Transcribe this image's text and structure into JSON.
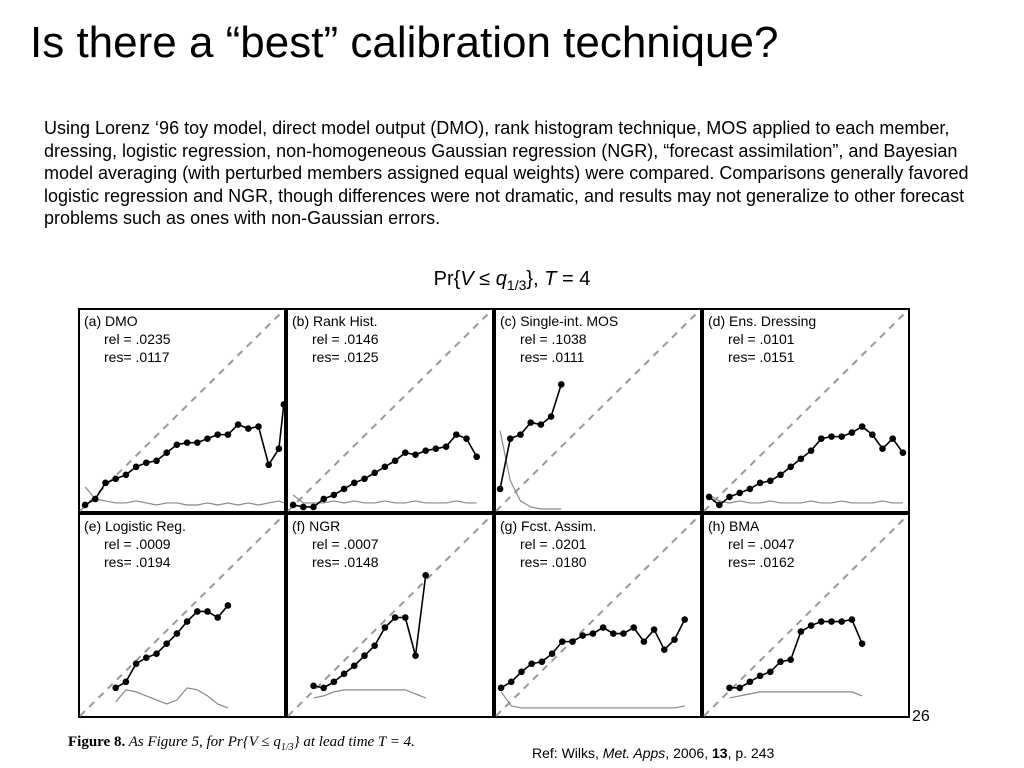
{
  "title": "Is there a “best” calibration technique?",
  "body": "Using Lorenz ‘96 toy model, direct model output (DMO), rank histogram technique, MOS applied to each member, dressing, logistic regression, non-homogeneous Gaussian regression (NGR), “forecast assimilation”, and Bayesian model averaging (with perturbed members assigned equal weights) were compared. Comparisons generally favored logistic regression and NGR, though differences were not dramatic, and results may not generalize to other forecast problems such as ones with non-Gaussian errors.",
  "figure_title": {
    "prefix": "Pr{",
    "var": "V",
    "le": " ≤ ",
    "q": "q",
    "q_sub": "1/3",
    "rest": "}, ",
    "t": "T",
    "t_val": " = 4"
  },
  "caption": {
    "label": "Figure 8.",
    "text_a": " As Figure 5, for Pr{V ≤ q",
    "text_sub": "1/3",
    "text_b": "} at lead time T = 4."
  },
  "page_number": "26",
  "reference": {
    "prefix": "Ref: Wilks, ",
    "journal": "Met. Apps",
    "mid": ", 2006, ",
    "volume": "13",
    "suffix": ", p. 243"
  },
  "chart_data": [
    {
      "type": "line",
      "label": "(a) DMO",
      "rel": "rel = .0235",
      "res": "res= .0117",
      "x": [
        0.025,
        0.075,
        0.125,
        0.175,
        0.225,
        0.275,
        0.325,
        0.375,
        0.425,
        0.475,
        0.525,
        0.575,
        0.625,
        0.675,
        0.725,
        0.775,
        0.825,
        0.875,
        0.925,
        0.975,
        0.999
      ],
      "y": [
        0.03,
        0.06,
        0.14,
        0.16,
        0.18,
        0.22,
        0.24,
        0.25,
        0.29,
        0.33,
        0.34,
        0.34,
        0.36,
        0.38,
        0.38,
        0.43,
        0.41,
        0.42,
        0.23,
        0.31,
        0.53
      ],
      "hist": [
        0.12,
        0.06,
        0.05,
        0.04,
        0.04,
        0.05,
        0.04,
        0.03,
        0.04,
        0.04,
        0.03,
        0.03,
        0.04,
        0.03,
        0.04,
        0.03,
        0.04,
        0.03,
        0.04,
        0.05,
        0.04
      ],
      "xlim": [
        0,
        1
      ],
      "ylim": [
        0,
        1
      ]
    },
    {
      "type": "line",
      "label": "(b) Rank Hist.",
      "rel": "rel = .0146",
      "res": "res= .0125",
      "x": [
        0.025,
        0.075,
        0.125,
        0.175,
        0.225,
        0.275,
        0.325,
        0.375,
        0.425,
        0.475,
        0.525,
        0.575,
        0.625,
        0.675,
        0.725,
        0.775,
        0.825,
        0.875,
        0.925
      ],
      "y": [
        0.03,
        0.02,
        0.02,
        0.06,
        0.08,
        0.11,
        0.14,
        0.16,
        0.19,
        0.22,
        0.25,
        0.29,
        0.28,
        0.3,
        0.31,
        0.32,
        0.38,
        0.36,
        0.27
      ],
      "hist": [
        0.08,
        0.04,
        0.04,
        0.04,
        0.05,
        0.04,
        0.05,
        0.04,
        0.04,
        0.05,
        0.04,
        0.04,
        0.05,
        0.04,
        0.04,
        0.04,
        0.05,
        0.04,
        0.04
      ],
      "xlim": [
        0,
        1
      ],
      "ylim": [
        0,
        1
      ]
    },
    {
      "type": "line",
      "label": "(c) Single-int. MOS",
      "rel": "rel = .1038",
      "res": "res= .0111",
      "x": [
        0.02,
        0.07,
        0.12,
        0.17,
        0.22,
        0.27,
        0.32
      ],
      "y": [
        0.11,
        0.36,
        0.38,
        0.44,
        0.43,
        0.47,
        0.63
      ],
      "hist": [
        0.4,
        0.15,
        0.05,
        0.02,
        0.01,
        0.01,
        0.01
      ],
      "xlim": [
        0,
        1
      ],
      "ylim": [
        0,
        1
      ]
    },
    {
      "type": "line",
      "label": "(d) Ens. Dressing",
      "rel": "rel = .0101",
      "res": "res= .0151",
      "x": [
        0.025,
        0.075,
        0.125,
        0.175,
        0.225,
        0.275,
        0.325,
        0.375,
        0.425,
        0.475,
        0.525,
        0.575,
        0.625,
        0.675,
        0.725,
        0.775,
        0.825,
        0.875,
        0.925,
        0.975
      ],
      "y": [
        0.07,
        0.03,
        0.07,
        0.09,
        0.11,
        0.14,
        0.15,
        0.18,
        0.22,
        0.26,
        0.3,
        0.36,
        0.37,
        0.37,
        0.39,
        0.42,
        0.38,
        0.31,
        0.36,
        0.29
      ],
      "hist": [
        0.08,
        0.05,
        0.04,
        0.05,
        0.04,
        0.04,
        0.05,
        0.04,
        0.04,
        0.04,
        0.05,
        0.04,
        0.04,
        0.05,
        0.04,
        0.04,
        0.04,
        0.05,
        0.04,
        0.04
      ],
      "xlim": [
        0,
        1
      ],
      "ylim": [
        0,
        1
      ]
    },
    {
      "type": "line",
      "label": "(e) Logistic Reg.",
      "rel": "rel = .0009",
      "res": "res= .0194",
      "x": [
        0.175,
        0.225,
        0.275,
        0.325,
        0.375,
        0.425,
        0.475,
        0.525,
        0.575,
        0.625,
        0.675,
        0.725
      ],
      "y": [
        0.14,
        0.17,
        0.26,
        0.29,
        0.31,
        0.36,
        0.41,
        0.47,
        0.52,
        0.52,
        0.49,
        0.55
      ],
      "hist": [
        0.07,
        0.13,
        0.12,
        0.1,
        0.08,
        0.06,
        0.08,
        0.14,
        0.13,
        0.1,
        0.06,
        0.04
      ],
      "xlim": [
        0,
        1
      ],
      "ylim": [
        0,
        1
      ]
    },
    {
      "type": "line",
      "label": "(f) NGR",
      "rel": "rel = .0007",
      "res": "res= .0148",
      "x": [
        0.125,
        0.175,
        0.225,
        0.275,
        0.325,
        0.375,
        0.425,
        0.475,
        0.525,
        0.575,
        0.625,
        0.675
      ],
      "y": [
        0.15,
        0.14,
        0.17,
        0.21,
        0.25,
        0.3,
        0.35,
        0.44,
        0.49,
        0.49,
        0.3,
        0.7
      ],
      "hist": [
        0.09,
        0.1,
        0.12,
        0.13,
        0.13,
        0.13,
        0.13,
        0.13,
        0.13,
        0.13,
        0.11,
        0.09
      ],
      "xlim": [
        0,
        1
      ],
      "ylim": [
        0,
        1
      ]
    },
    {
      "type": "line",
      "label": "(g) Fcst. Assim.",
      "rel": "rel = .0201",
      "res": "res= .0180",
      "x": [
        0.025,
        0.075,
        0.125,
        0.175,
        0.225,
        0.275,
        0.325,
        0.375,
        0.425,
        0.475,
        0.525,
        0.575,
        0.625,
        0.675,
        0.725,
        0.775,
        0.825,
        0.875,
        0.925
      ],
      "y": [
        0.14,
        0.17,
        0.22,
        0.26,
        0.27,
        0.31,
        0.37,
        0.37,
        0.4,
        0.41,
        0.44,
        0.41,
        0.41,
        0.44,
        0.37,
        0.43,
        0.33,
        0.38,
        0.48
      ],
      "hist": [
        0.12,
        0.05,
        0.04,
        0.04,
        0.04,
        0.04,
        0.04,
        0.04,
        0.04,
        0.04,
        0.04,
        0.04,
        0.04,
        0.04,
        0.04,
        0.04,
        0.04,
        0.04,
        0.05
      ],
      "xlim": [
        0,
        1
      ],
      "ylim": [
        0,
        1
      ]
    },
    {
      "type": "line",
      "label": "(h) BMA",
      "rel": "rel = .0047",
      "res": "res= .0162",
      "x": [
        0.125,
        0.175,
        0.225,
        0.275,
        0.325,
        0.375,
        0.425,
        0.475,
        0.525,
        0.575,
        0.625,
        0.675,
        0.725,
        0.775
      ],
      "y": [
        0.14,
        0.14,
        0.17,
        0.2,
        0.22,
        0.27,
        0.28,
        0.42,
        0.45,
        0.47,
        0.47,
        0.47,
        0.48,
        0.36
      ],
      "hist": [
        0.09,
        0.1,
        0.11,
        0.12,
        0.12,
        0.12,
        0.12,
        0.12,
        0.12,
        0.12,
        0.12,
        0.12,
        0.12,
        0.1
      ],
      "xlim": [
        0,
        1
      ],
      "ylim": [
        0,
        1
      ]
    }
  ]
}
